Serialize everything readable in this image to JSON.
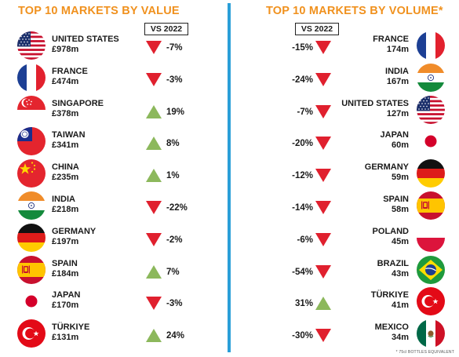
{
  "colors": {
    "title": "#f0911e",
    "divider": "#2a9fd8",
    "up": "#8cb85c",
    "down": "#e0202e"
  },
  "left": {
    "title": "TOP 10 MARKETS BY VALUE",
    "vs_label": "VS 2022",
    "rows": [
      {
        "flag": "united-states-flag-icon",
        "country": "UNITED STATES",
        "figure": "£978m",
        "trend": "down",
        "change": "-7%"
      },
      {
        "flag": "france-flag-icon",
        "country": "FRANCE",
        "figure": "£474m",
        "trend": "down",
        "change": "-3%"
      },
      {
        "flag": "singapore-flag-icon",
        "country": "SINGAPORE",
        "figure": "£378m",
        "trend": "up",
        "change": "19%"
      },
      {
        "flag": "taiwan-flag-icon",
        "country": "TAIWAN",
        "figure": "£341m",
        "trend": "up",
        "change": "8%"
      },
      {
        "flag": "china-flag-icon",
        "country": "CHINA",
        "figure": "£235m",
        "trend": "up",
        "change": "1%"
      },
      {
        "flag": "india-flag-icon",
        "country": "INDIA",
        "figure": "£218m",
        "trend": "down",
        "change": "-22%"
      },
      {
        "flag": "germany-flag-icon",
        "country": "GERMANY",
        "figure": "£197m",
        "trend": "down",
        "change": "-2%"
      },
      {
        "flag": "spain-flag-icon",
        "country": "SPAIN",
        "figure": "£184m",
        "trend": "up",
        "change": "7%"
      },
      {
        "flag": "japan-flag-icon",
        "country": "JAPAN",
        "figure": "£170m",
        "trend": "down",
        "change": "-3%"
      },
      {
        "flag": "turkiye-flag-icon",
        "country": "TÜRKIYE",
        "figure": "£131m",
        "trend": "up",
        "change": "24%"
      }
    ]
  },
  "right": {
    "title": "TOP 10 MARKETS BY VOLUME*",
    "vs_label": "VS 2022",
    "rows": [
      {
        "flag": "france-flag-icon",
        "country": "FRANCE",
        "figure": "174m",
        "trend": "down",
        "change": "-15%"
      },
      {
        "flag": "india-flag-icon",
        "country": "INDIA",
        "figure": "167m",
        "trend": "down",
        "change": "-24%"
      },
      {
        "flag": "united-states-flag-icon",
        "country": "UNITED STATES",
        "figure": "127m",
        "trend": "down",
        "change": "-7%"
      },
      {
        "flag": "japan-flag-icon",
        "country": "JAPAN",
        "figure": "60m",
        "trend": "down",
        "change": "-20%"
      },
      {
        "flag": "germany-flag-icon",
        "country": "GERMANY",
        "figure": "59m",
        "trend": "down",
        "change": "-12%"
      },
      {
        "flag": "spain-flag-icon",
        "country": "SPAIN",
        "figure": "58m",
        "trend": "down",
        "change": "-14%"
      },
      {
        "flag": "poland-flag-icon",
        "country": "POLAND",
        "figure": "45m",
        "trend": "down",
        "change": "-6%"
      },
      {
        "flag": "brazil-flag-icon",
        "country": "BRAZIL",
        "figure": "43m",
        "trend": "down",
        "change": "-54%"
      },
      {
        "flag": "turkiye-flag-icon",
        "country": "TÜRKIYE",
        "figure": "41m",
        "trend": "up",
        "change": "31%"
      },
      {
        "flag": "mexico-flag-icon",
        "country": "MEXICO",
        "figure": "34m",
        "trend": "down",
        "change": "-30%"
      }
    ]
  },
  "footnote": "* 75cl BOTTLES EQUIVALENT"
}
